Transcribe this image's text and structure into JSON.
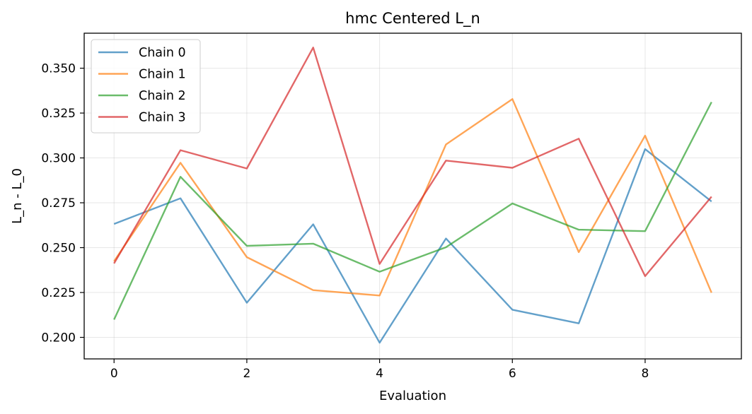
{
  "chart_data": {
    "type": "line",
    "title": "hmc Centered L_n",
    "xlabel": "Evaluation",
    "ylabel": "L_n - L_0",
    "x": [
      0,
      1,
      2,
      3,
      4,
      5,
      6,
      7,
      8,
      9
    ],
    "xlim": [
      -0.45,
      9.45
    ],
    "ylim": [
      0.188,
      0.3695
    ],
    "xticks": [
      0,
      2,
      4,
      6,
      8
    ],
    "xtick_labels": [
      "0",
      "2",
      "4",
      "6",
      "8"
    ],
    "yticks": [
      0.2,
      0.225,
      0.25,
      0.275,
      0.3,
      0.325,
      0.35
    ],
    "ytick_labels": [
      "0.200",
      "0.225",
      "0.250",
      "0.275",
      "0.300",
      "0.325",
      "0.350"
    ],
    "grid": true,
    "legend_position": "top-left",
    "series": [
      {
        "name": "Chain 0",
        "color": "#1f77b4",
        "values": [
          0.2632,
          0.2775,
          0.2193,
          0.263,
          0.197,
          0.2551,
          0.2154,
          0.2078,
          0.3049,
          0.2757
        ]
      },
      {
        "name": "Chain 1",
        "color": "#ff7f0e",
        "values": [
          0.2424,
          0.2973,
          0.2447,
          0.2263,
          0.2233,
          0.3075,
          0.3328,
          0.2475,
          0.3124,
          0.2249
        ]
      },
      {
        "name": "Chain 2",
        "color": "#2ca02c",
        "values": [
          0.2099,
          0.2895,
          0.251,
          0.2522,
          0.2366,
          0.2502,
          0.2746,
          0.26,
          0.2592,
          0.3311
        ]
      },
      {
        "name": "Chain 3",
        "color": "#d62728",
        "values": [
          0.2412,
          0.3043,
          0.2941,
          0.3615,
          0.2409,
          0.2985,
          0.2945,
          0.3107,
          0.2341,
          0.2784
        ]
      }
    ]
  }
}
